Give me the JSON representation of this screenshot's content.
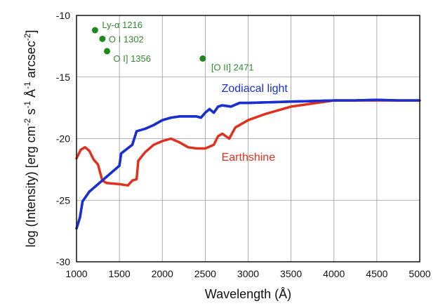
{
  "chart_data": {
    "type": "line",
    "title": "",
    "xlabel": "Wavelength (Å)",
    "ylabel": "log (Intensity) [erg cm-2 s-1 Å-1 arcsec-2]",
    "xlim": [
      1000,
      5000
    ],
    "ylim": [
      -30,
      -10
    ],
    "grid": true,
    "x_ticks": [
      1000,
      1500,
      2000,
      2500,
      3000,
      3500,
      4000,
      4500,
      5000
    ],
    "y_ticks": [
      -10,
      -15,
      -20,
      -25,
      -30
    ],
    "series": [
      {
        "name": "Zodiacal light",
        "color": "#1a2fd0",
        "x": [
          1000,
          1040,
          1070,
          1150,
          1300,
          1500,
          1520,
          1650,
          1700,
          1800,
          1900,
          2000,
          2100,
          2200,
          2300,
          2400,
          2450,
          2500,
          2550,
          2600,
          2650,
          2700,
          2800,
          2900,
          3000,
          3250,
          3500,
          3750,
          4000,
          4250,
          4500,
          4750,
          5000
        ],
        "y": [
          -27.3,
          -26.4,
          -25.1,
          -24.3,
          -23.4,
          -22.2,
          -21.2,
          -20.5,
          -19.4,
          -19.2,
          -18.9,
          -18.5,
          -18.3,
          -18.2,
          -18.2,
          -18.2,
          -18.3,
          -17.9,
          -17.6,
          -17.9,
          -17.4,
          -17.3,
          -17.4,
          -17.1,
          -17.1,
          -17.05,
          -17.0,
          -16.95,
          -16.9,
          -16.9,
          -16.85,
          -16.9,
          -16.9
        ]
      },
      {
        "name": "Earthshine",
        "color": "#e0301e",
        "x": [
          1000,
          1050,
          1100,
          1150,
          1200,
          1250,
          1300,
          1350,
          1500,
          1600,
          1650,
          1700,
          1720,
          1800,
          1900,
          2000,
          2100,
          2200,
          2300,
          2400,
          2500,
          2600,
          2650,
          2700,
          2780,
          2850,
          3000,
          3200,
          3500,
          3800,
          4000,
          4500,
          5000
        ],
        "y": [
          -21.6,
          -20.9,
          -20.7,
          -21.0,
          -21.7,
          -22.1,
          -23.4,
          -23.6,
          -23.7,
          -23.8,
          -23.4,
          -23.3,
          -21.8,
          -21.1,
          -20.5,
          -20.2,
          -20.0,
          -20.3,
          -20.7,
          -20.8,
          -20.8,
          -20.5,
          -19.8,
          -19.6,
          -20.0,
          -19.1,
          -18.5,
          -18.0,
          -17.4,
          -17.1,
          -16.9,
          -16.9,
          -16.9
        ]
      }
    ],
    "points": [
      {
        "label": "Ly-α 1216",
        "x": 1216,
        "y": -11.2
      },
      {
        "label": "O I 1302",
        "x": 1302,
        "y": -11.9
      },
      {
        "label": "O I] 1356",
        "x": 1356,
        "y": -12.9
      },
      {
        "label": "[O II] 2471",
        "x": 2471,
        "y": -13.5
      }
    ],
    "point_color": "#1e8a1e",
    "annotations": [
      {
        "text": "Zodiacal light",
        "series": "Zodiacal light"
      },
      {
        "text": "Earthshine",
        "series": "Earthshine"
      }
    ]
  }
}
